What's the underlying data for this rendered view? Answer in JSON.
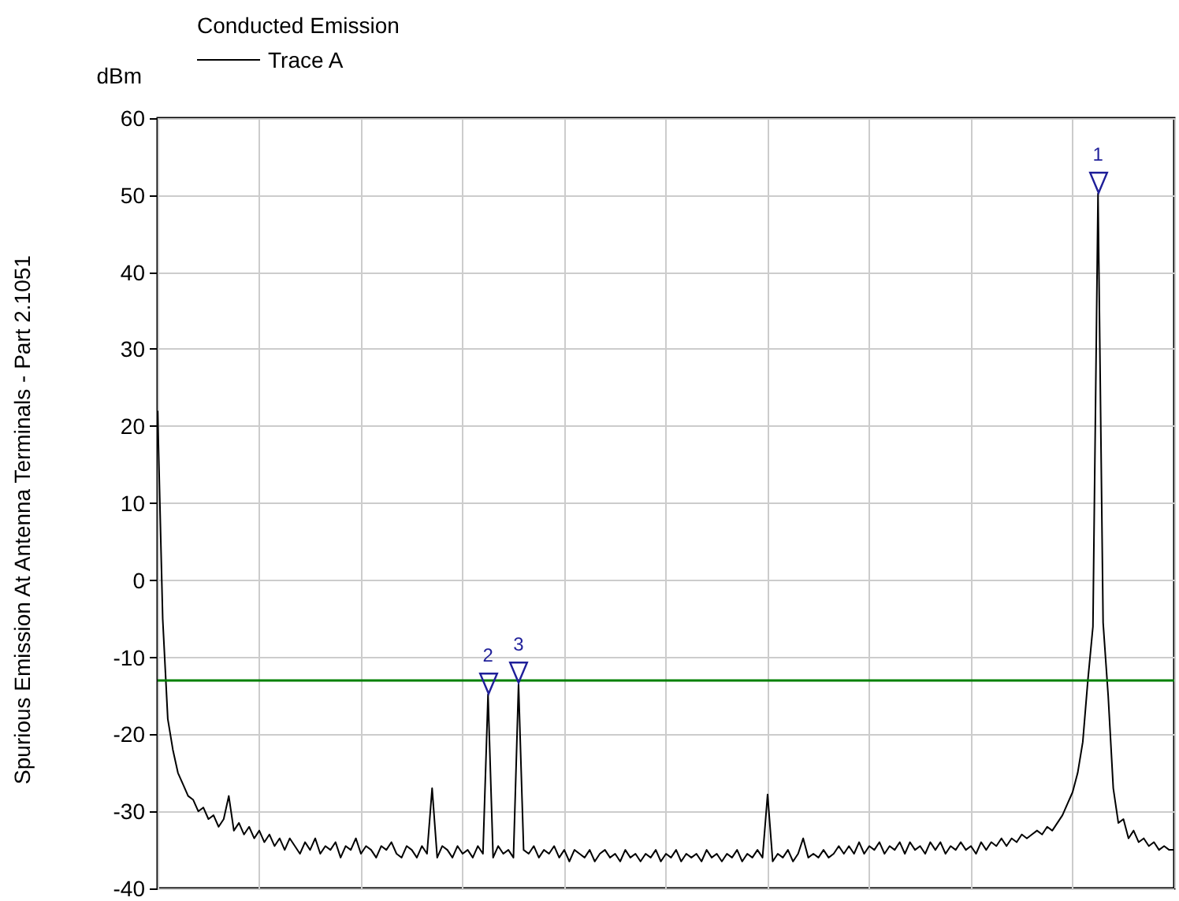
{
  "chart_data": {
    "type": "line",
    "title": "Conducted Emission",
    "ylabel": "dBm",
    "annotations": [
      "Spurious Emission At Antenna Terminals - Part 2.1051",
      {
        "text": "1",
        "y": 50.2
      },
      {
        "text": "2",
        "y": -14.8
      },
      {
        "text": "3",
        "y": -13.5
      }
    ],
    "categories": [
      null,
      null,
      null,
      null,
      null,
      null,
      null,
      null,
      null,
      null,
      null,
      null,
      null,
      null,
      null,
      null,
      null,
      null,
      null,
      null,
      null,
      null,
      null,
      null,
      null,
      null,
      null,
      null,
      null,
      null,
      null,
      null,
      null,
      null,
      null,
      null,
      null,
      null,
      null,
      null,
      null,
      null,
      null,
      null,
      null,
      null,
      null,
      null,
      null,
      null,
      null,
      null,
      null,
      null,
      null,
      null,
      null,
      null,
      null,
      null,
      null,
      null,
      null,
      null,
      null,
      null,
      null,
      null,
      null,
      null,
      null,
      null,
      null,
      null,
      null,
      null,
      null,
      null,
      null,
      null,
      null,
      null,
      null,
      null,
      null,
      null,
      null,
      null,
      null,
      null,
      null,
      null,
      null,
      null,
      null,
      null,
      null,
      null,
      null,
      null,
      null,
      null,
      null,
      null,
      null,
      null,
      null,
      null,
      null,
      null,
      null,
      null,
      null,
      null,
      null,
      null,
      null,
      null,
      null,
      null,
      null,
      null,
      null,
      null,
      null,
      null,
      null,
      null,
      null,
      null,
      null,
      null,
      null,
      null,
      null,
      null,
      null,
      null,
      null,
      null,
      null,
      null,
      null,
      null,
      null,
      null,
      null,
      null,
      null,
      null,
      null,
      null,
      null,
      null,
      null,
      null,
      null,
      null,
      null,
      null,
      null,
      null,
      null,
      null,
      null,
      null,
      null,
      null,
      null,
      null,
      null,
      null,
      null,
      null,
      null,
      null,
      null,
      null,
      null,
      null,
      null,
      null,
      null,
      null,
      null,
      null,
      null,
      null,
      null,
      null,
      null,
      null,
      null,
      null,
      null,
      null,
      null,
      null,
      null,
      null,
      null
    ],
    "ylim": [
      -40,
      60
    ],
    "yticks": [
      -40,
      -30,
      -20,
      -10,
      0,
      10,
      20,
      30,
      40,
      50,
      60
    ],
    "grid": true,
    "legend": "top left",
    "ref_lines": [
      {
        "axis": "y",
        "value": -13,
        "color": "#008000"
      }
    ],
    "series": [
      {
        "name": "Trace A",
        "color": "#000000",
        "values": [
          22,
          -5,
          -18,
          -22,
          -25,
          -26.5,
          -28,
          -28.5,
          -30,
          -29.5,
          -31,
          -30.5,
          -32,
          -31,
          -28,
          -32.5,
          -31.5,
          -33,
          -32,
          -33.5,
          -32.5,
          -34,
          -33,
          -34.5,
          -33.5,
          -35,
          -33.5,
          -34.5,
          -35.5,
          -34,
          -35,
          -33.5,
          -35.5,
          -34.5,
          -35,
          -34,
          -36,
          -34.5,
          -35,
          -33.5,
          -35.5,
          -34.5,
          -35,
          -36,
          -34.5,
          -35,
          -34,
          -35.5,
          -36,
          -34.5,
          -35,
          -36,
          -34.5,
          -35.5,
          -27,
          -36,
          -34.5,
          -35,
          -36,
          -34.5,
          -35.5,
          -35,
          -36,
          -34.5,
          -35.5,
          -14.8,
          -36,
          -34.5,
          -35.5,
          -35,
          -36,
          -13.5,
          -35,
          -35.5,
          -34.5,
          -36,
          -35,
          -35.5,
          -34.5,
          -36,
          -35,
          -36.5,
          -35,
          -35.5,
          -36,
          -35,
          -36.5,
          -35.5,
          -35,
          -36,
          -35.5,
          -36.5,
          -35,
          -36,
          -35.5,
          -36.5,
          -35.5,
          -36,
          -35,
          -36.5,
          -35.5,
          -36,
          -35,
          -36.5,
          -35.5,
          -36,
          -35.5,
          -36.5,
          -35,
          -36,
          -35.5,
          -36.5,
          -35.5,
          -36,
          -35,
          -36.5,
          -35.5,
          -36,
          -35,
          -36,
          -27.8,
          -36.5,
          -35.5,
          -36,
          -35,
          -36.5,
          -35.5,
          -33.5,
          -36,
          -35.5,
          -36,
          -35,
          -36,
          -35.5,
          -34.5,
          -35.5,
          -34.5,
          -35.5,
          -34,
          -35.5,
          -34.5,
          -35,
          -34,
          -35.5,
          -34.5,
          -35,
          -34,
          -35.5,
          -34,
          -35,
          -34.5,
          -35.5,
          -34,
          -35,
          -34,
          -35.5,
          -34.5,
          -35,
          -34,
          -35,
          -34.5,
          -35.5,
          -34,
          -35,
          -34,
          -34.5,
          -33.5,
          -34.5,
          -33.5,
          -34,
          -33,
          -33.5,
          -33,
          -32.5,
          -33,
          -32,
          -32.5,
          -31.5,
          -30.5,
          -29,
          -27.5,
          -25,
          -21,
          -13,
          -6,
          50.2,
          -5.5,
          -15,
          -27,
          -31.5,
          -31,
          -33.5,
          -32.5,
          -34,
          -33.5,
          -34.5,
          -34,
          -35,
          -34.5,
          -35,
          -35
        ]
      }
    ]
  }
}
